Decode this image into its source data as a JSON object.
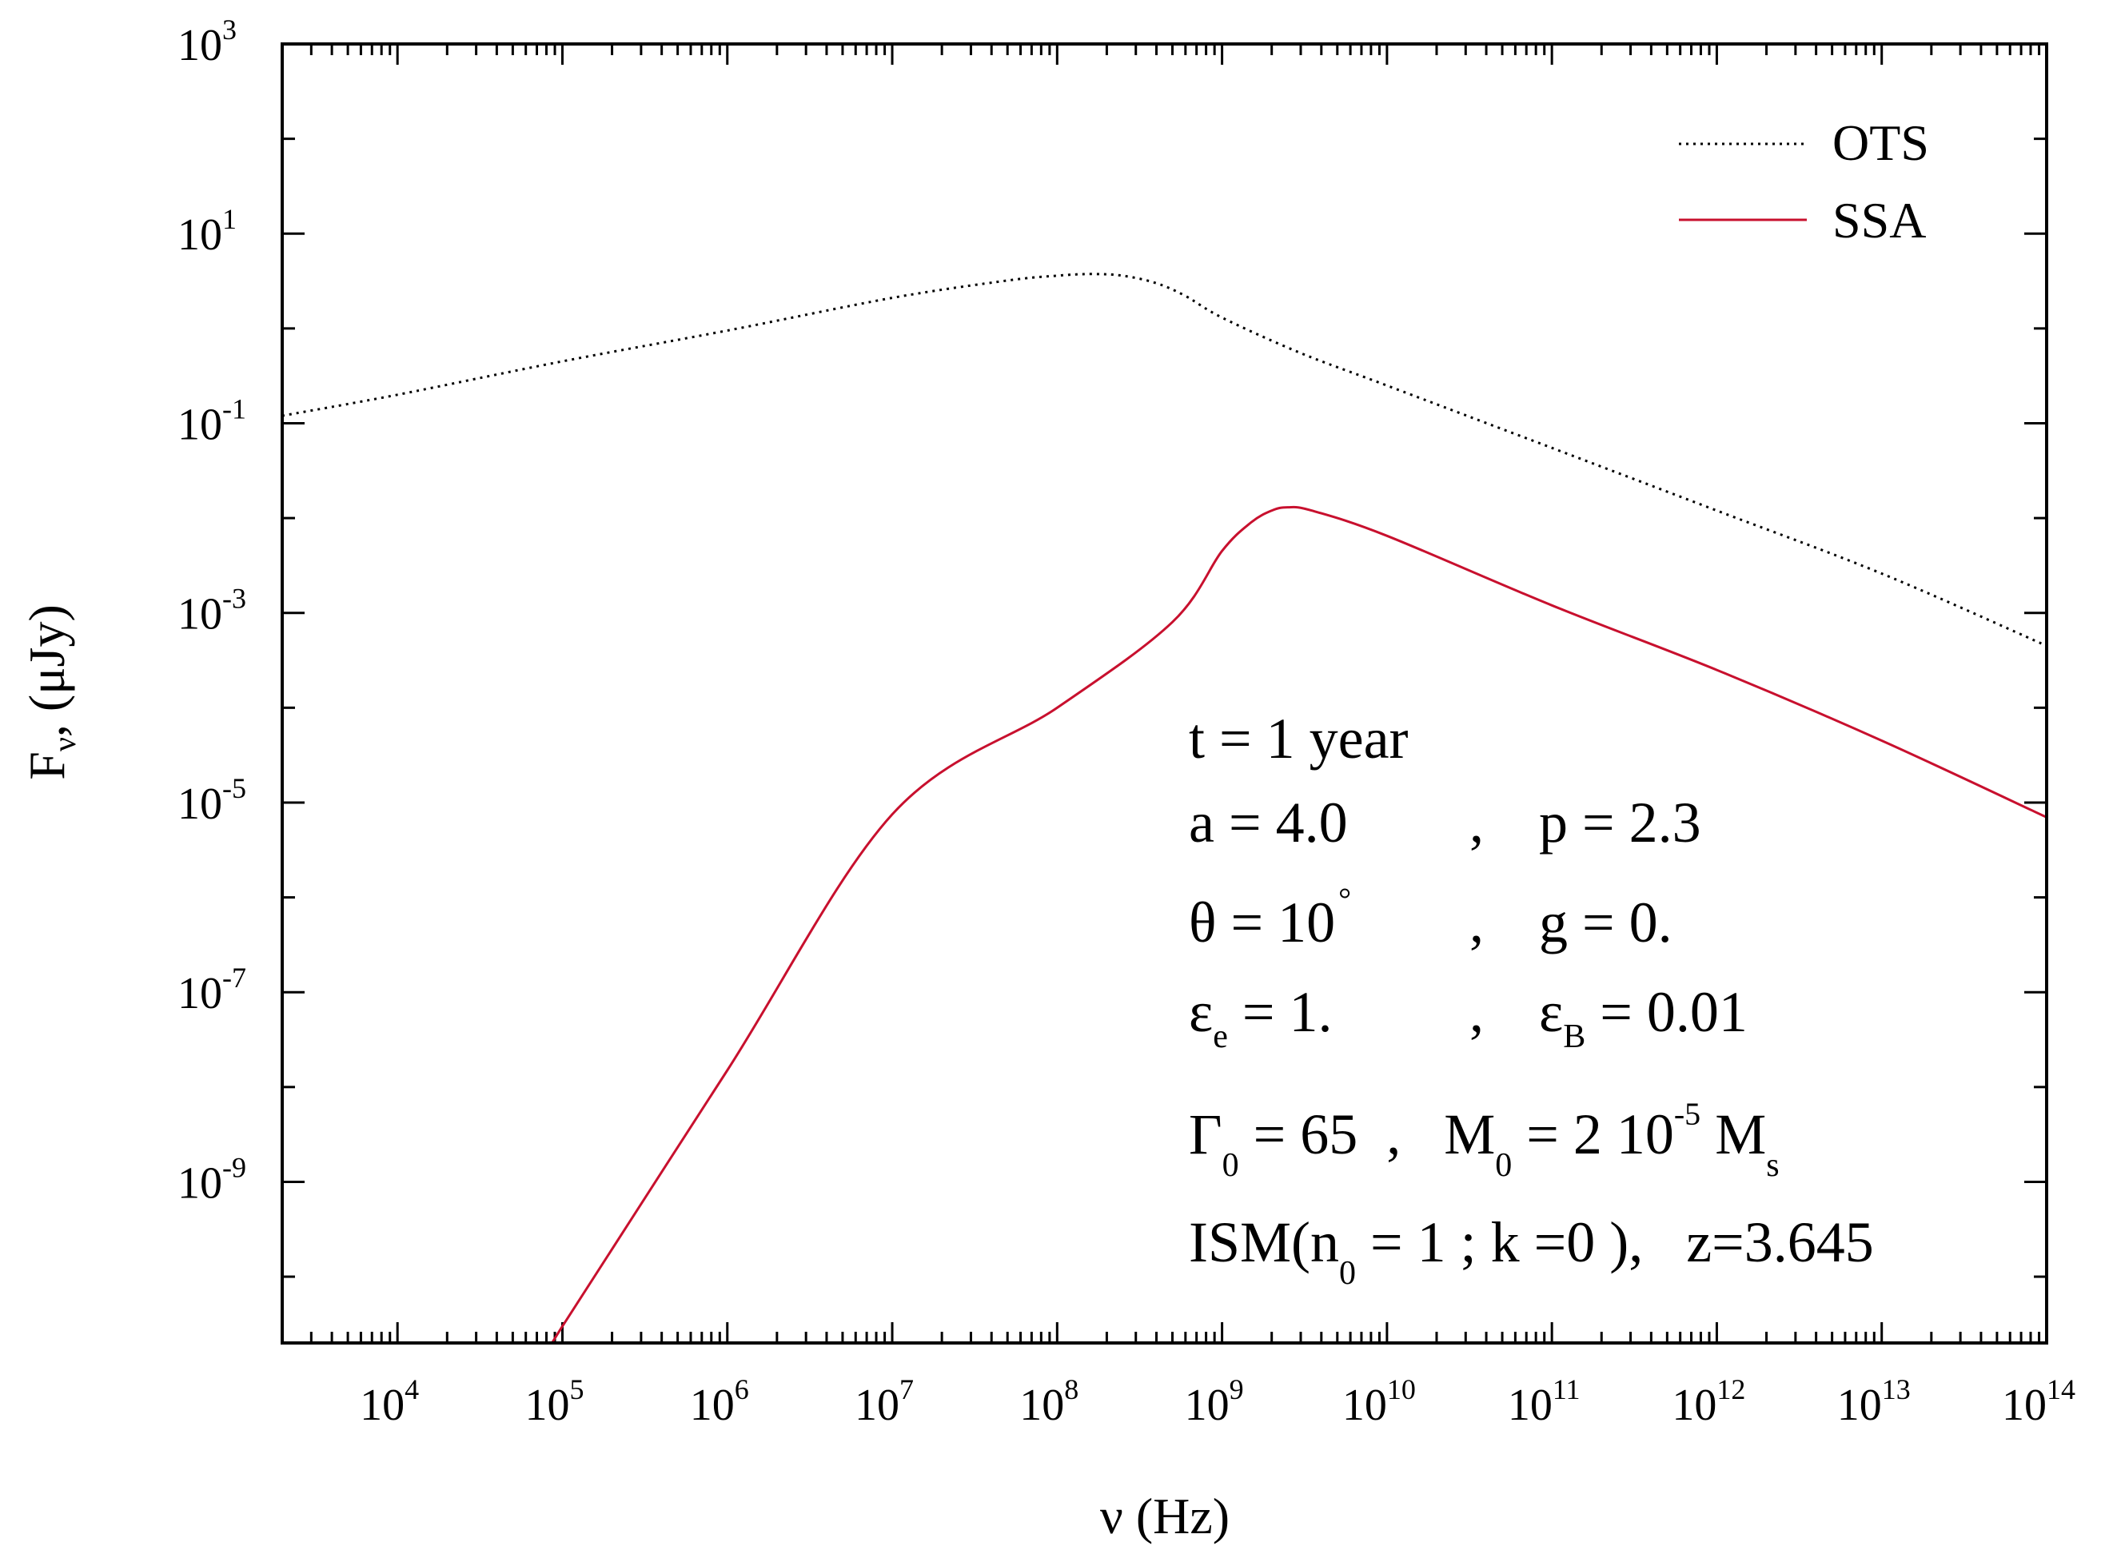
{
  "chart_data": {
    "type": "line",
    "title": "",
    "xlabel": "ν (Hz)",
    "ylabel": "Fν, (μJy)",
    "xscale": "log",
    "yscale": "log",
    "xlim": [
      2000.0,
      100000000000000.0
    ],
    "ylim": [
      2e-11,
      1000.0
    ],
    "grid": false,
    "legend_position": "top-right",
    "x_ticks": [
      {
        "base": "10",
        "exp": "4",
        "value": 10000.0
      },
      {
        "base": "10",
        "exp": "5",
        "value": 100000.0
      },
      {
        "base": "10",
        "exp": "6",
        "value": 1000000.0
      },
      {
        "base": "10",
        "exp": "7",
        "value": 10000000.0
      },
      {
        "base": "10",
        "exp": "8",
        "value": 100000000.0
      },
      {
        "base": "10",
        "exp": "9",
        "value": 1000000000.0
      },
      {
        "base": "10",
        "exp": "10",
        "value": 10000000000.0
      },
      {
        "base": "10",
        "exp": "11",
        "value": 100000000000.0
      },
      {
        "base": "10",
        "exp": "12",
        "value": 1000000000000.0
      },
      {
        "base": "10",
        "exp": "13",
        "value": 10000000000000.0
      },
      {
        "base": "10",
        "exp": "14",
        "value": 100000000000000.0
      }
    ],
    "y_ticks": [
      {
        "base": "10",
        "exp": "3",
        "value": 1000.0
      },
      {
        "base": "10",
        "exp": "1",
        "value": 10.0
      },
      {
        "base": "10",
        "exp": "-1",
        "value": 0.1
      },
      {
        "base": "10",
        "exp": "-3",
        "value": 0.001
      },
      {
        "base": "10",
        "exp": "-5",
        "value": 1e-05
      },
      {
        "base": "10",
        "exp": "-7",
        "value": 1e-07
      },
      {
        "base": "10",
        "exp": "-9",
        "value": 1e-09
      }
    ],
    "series": [
      {
        "name": "OTS",
        "color": "#000000",
        "style": "dotted",
        "x": [
          2000.0,
          10000.0,
          100000.0,
          1000000.0,
          10000000.0,
          50000000.0,
          100000000.0,
          160000000.0,
          250000000.0,
          400000000.0,
          600000000.0,
          1000000000.0,
          3000000000.0,
          10000000000.0,
          100000000000.0,
          1000000000000.0,
          10000000000000.0,
          100000000000000.0
        ],
        "y": [
          0.12,
          0.2,
          0.45,
          0.95,
          2.1,
          3.2,
          3.6,
          3.75,
          3.6,
          3.0,
          2.2,
          1.3,
          0.55,
          0.25,
          0.055,
          0.012,
          0.0026,
          0.00045
        ]
      },
      {
        "name": "SSA",
        "color": "#c8102e",
        "style": "solid",
        "x": [
          90000.0,
          100000.0,
          1000000.0,
          10000000.0,
          100000000.0,
          500000000.0,
          1000000000.0,
          1500000000.0,
          2000000000.0,
          2500000000.0,
          3500000000.0,
          10000000000.0,
          100000000000.0,
          1000000000000.0,
          10000000000000.0,
          100000000000000.0
        ],
        "y": [
          2e-11,
          3e-11,
          1.5e-08,
          7.5e-06,
          0.0001,
          0.0008,
          0.0045,
          0.009,
          0.012,
          0.013,
          0.012,
          0.0065,
          0.0012,
          0.00025,
          4.5e-05,
          7e-06
        ]
      }
    ]
  },
  "annotations": {
    "line1": {
      "main": "t  = 1 year"
    },
    "line2": {
      "left": "a = 4.0",
      "sep": ",",
      "right": "p = 2.3"
    },
    "line3": {
      "left_a": "θ = 10",
      "left_sup": "°",
      "sep": ",",
      "right": "g = 0."
    },
    "line4": {
      "left_a": "ε",
      "left_sub": "e",
      "left_b": " = 1.",
      "sep": ",",
      "right_a": "ε",
      "right_sub": "B",
      "right_b": " = 0.01"
    },
    "line5": {
      "a": "Γ",
      "a_sub": "0",
      "b": " = 65  ,   M",
      "b_sub": "0",
      "c": " = 2 10",
      "c_sup": "-5",
      "d": " M",
      "d_sub": "s"
    },
    "line6": {
      "a": "ISM(n",
      "a_sub": "0",
      "b": " = 1 ; k =0 ),   z=3.645"
    }
  }
}
